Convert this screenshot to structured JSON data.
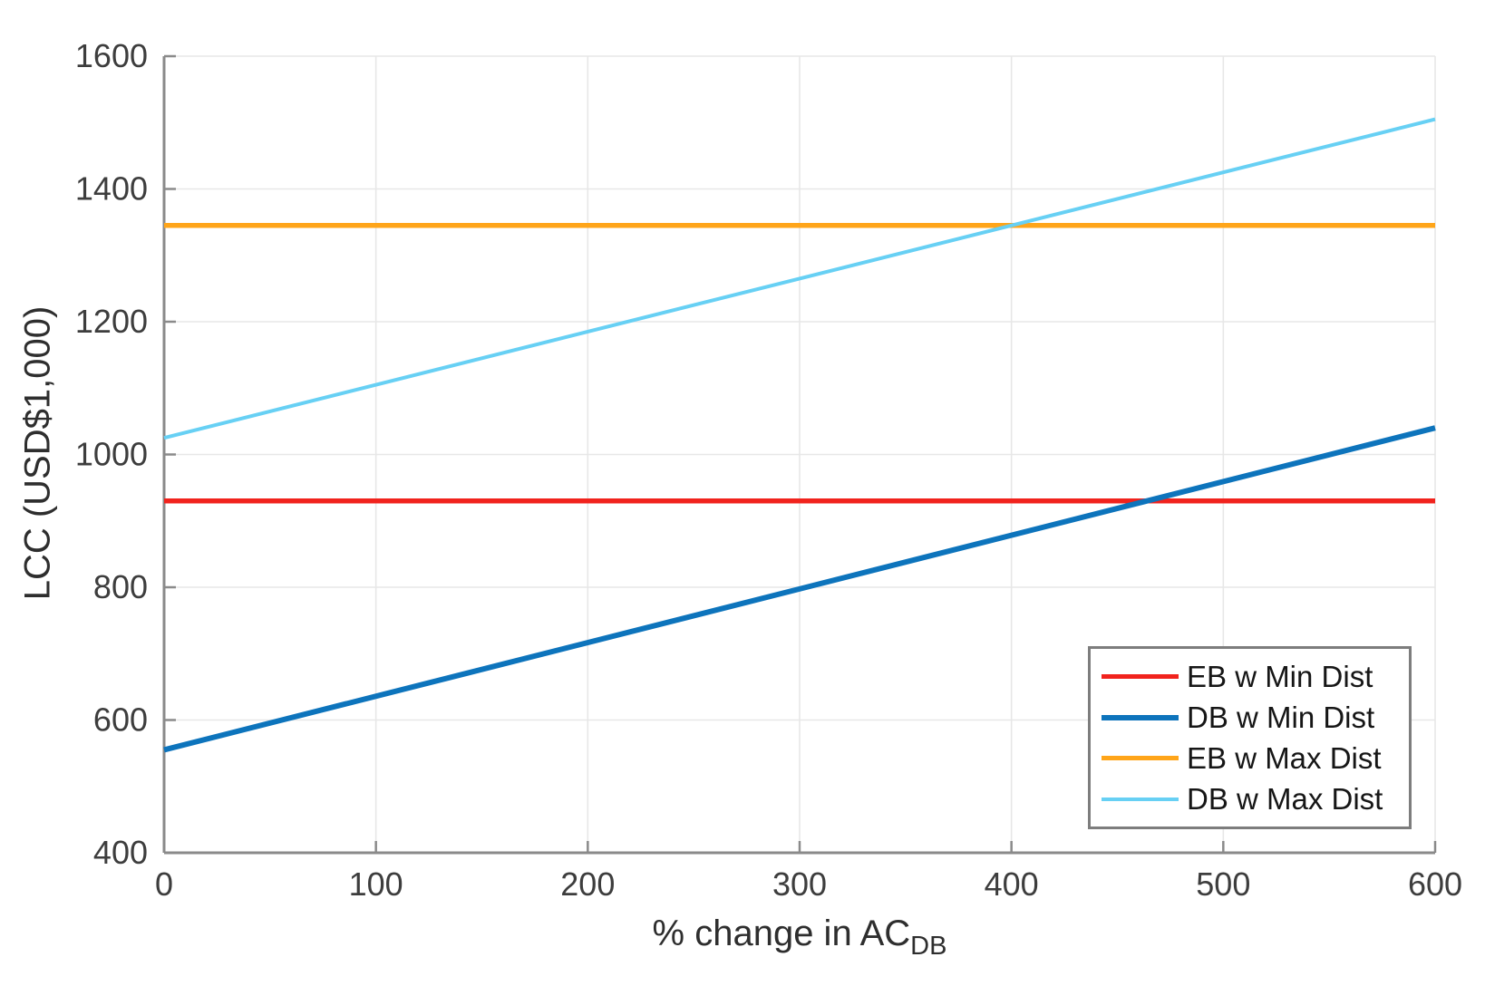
{
  "chart_data": {
    "type": "line",
    "title": "",
    "xlabel": "% change in AC",
    "xlabel_subscript": "DB",
    "ylabel": "LCC (USD$1,000)",
    "xlim": [
      0,
      600
    ],
    "ylim": [
      400,
      1600
    ],
    "xticks": [
      0,
      100,
      200,
      300,
      400,
      500,
      600
    ],
    "yticks": [
      400,
      600,
      800,
      1000,
      1200,
      1400,
      1600
    ],
    "grid": true,
    "legend_position": "bottom-right",
    "x": [
      0,
      600
    ],
    "series": [
      {
        "name": "EB w Min Dist",
        "color": "#f1231d",
        "line_width": 5.5,
        "values": [
          930,
          930
        ]
      },
      {
        "name": "DB w Min Dist",
        "color": "#0d74bc",
        "line_width": 6,
        "values": [
          555,
          1040
        ]
      },
      {
        "name": "EB w Max Dist",
        "color": "#ffa519",
        "line_width": 5.5,
        "values": [
          1345,
          1345
        ]
      },
      {
        "name": "DB w Max Dist",
        "color": "#67d0f4",
        "line_width": 4,
        "values": [
          1025,
          1505
        ]
      }
    ],
    "colors": {
      "axis": "#8a8a8a",
      "grid": "#e7e7e7",
      "tick_text": "#3d3d3d"
    }
  }
}
